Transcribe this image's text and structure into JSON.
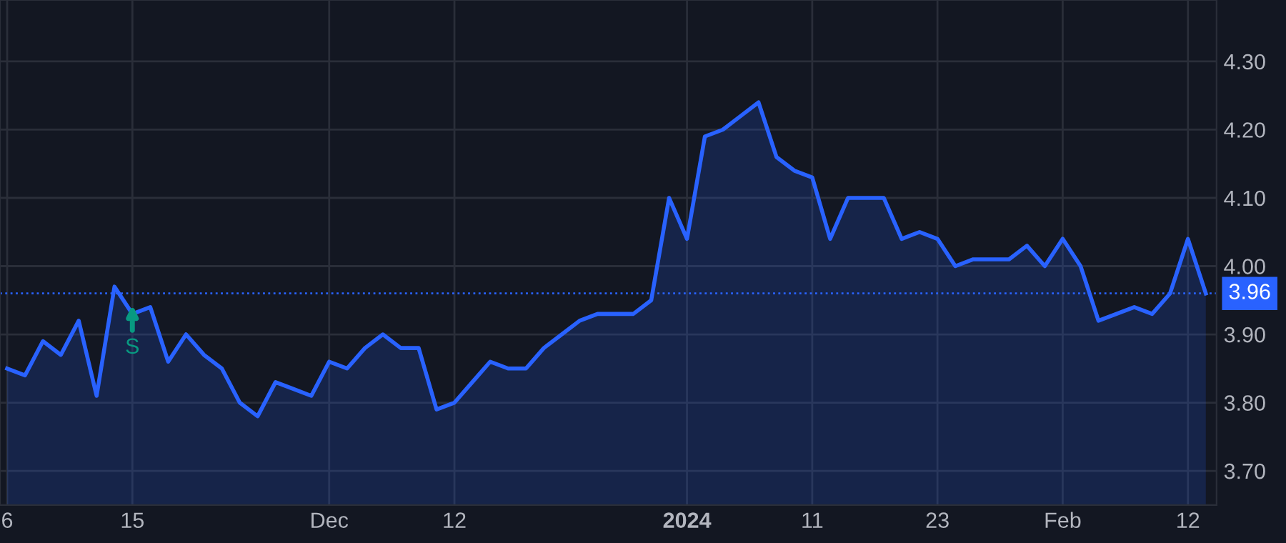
{
  "chart_data": {
    "type": "area",
    "categories": [
      "6",
      null,
      null,
      null,
      null,
      null,
      null,
      "15",
      null,
      null,
      null,
      null,
      null,
      null,
      null,
      null,
      null,
      null,
      "Dec",
      null,
      null,
      null,
      null,
      null,
      null,
      "12",
      null,
      null,
      null,
      null,
      null,
      null,
      null,
      null,
      null,
      null,
      null,
      null,
      "2024",
      null,
      null,
      null,
      null,
      null,
      null,
      "11",
      null,
      null,
      null,
      null,
      null,
      null,
      "23",
      null,
      null,
      null,
      null,
      null,
      null,
      "Feb",
      null,
      null,
      null,
      null,
      null,
      null,
      "12",
      null
    ],
    "series": [
      {
        "color": "#2962ff",
        "values": [
          3.85,
          3.84,
          3.89,
          3.87,
          3.92,
          3.81,
          3.97,
          3.93,
          3.94,
          3.86,
          3.9,
          3.87,
          3.85,
          3.8,
          3.78,
          3.83,
          3.82,
          3.81,
          3.86,
          3.85,
          3.88,
          3.9,
          3.88,
          3.88,
          3.79,
          3.8,
          3.83,
          3.86,
          3.85,
          3.85,
          3.88,
          3.9,
          3.92,
          3.93,
          3.93,
          3.93,
          3.95,
          4.1,
          4.04,
          4.19,
          4.2,
          4.22,
          4.24,
          4.16,
          4.14,
          4.13,
          4.04,
          4.1,
          4.1,
          4.1,
          4.04,
          4.05,
          4.04,
          4.0,
          4.01,
          4.01,
          4.01,
          4.03,
          4.0,
          4.04,
          4.0,
          3.92,
          3.93,
          3.94,
          3.93,
          3.96,
          4.04,
          3.96
        ]
      }
    ],
    "ylim": [
      3.65,
      4.39
    ],
    "yticks": [
      {
        "value": 3.7,
        "label": "3.70"
      },
      {
        "value": 3.8,
        "label": "3.80"
      },
      {
        "value": 3.9,
        "label": "3.90"
      },
      {
        "value": 4.0,
        "label": "4.00"
      },
      {
        "value": 4.1,
        "label": "4.10"
      },
      {
        "value": 4.2,
        "label": "4.20"
      },
      {
        "value": 4.3,
        "label": "4.30"
      }
    ],
    "grid": true,
    "line_style": "solid",
    "marker": "none",
    "ref_lines": [
      {
        "axis": "y",
        "value": 3.96,
        "label": "3.96",
        "color": "#2962ff",
        "line_style": "dotted"
      }
    ],
    "annotations": [
      "S"
    ]
  }
}
